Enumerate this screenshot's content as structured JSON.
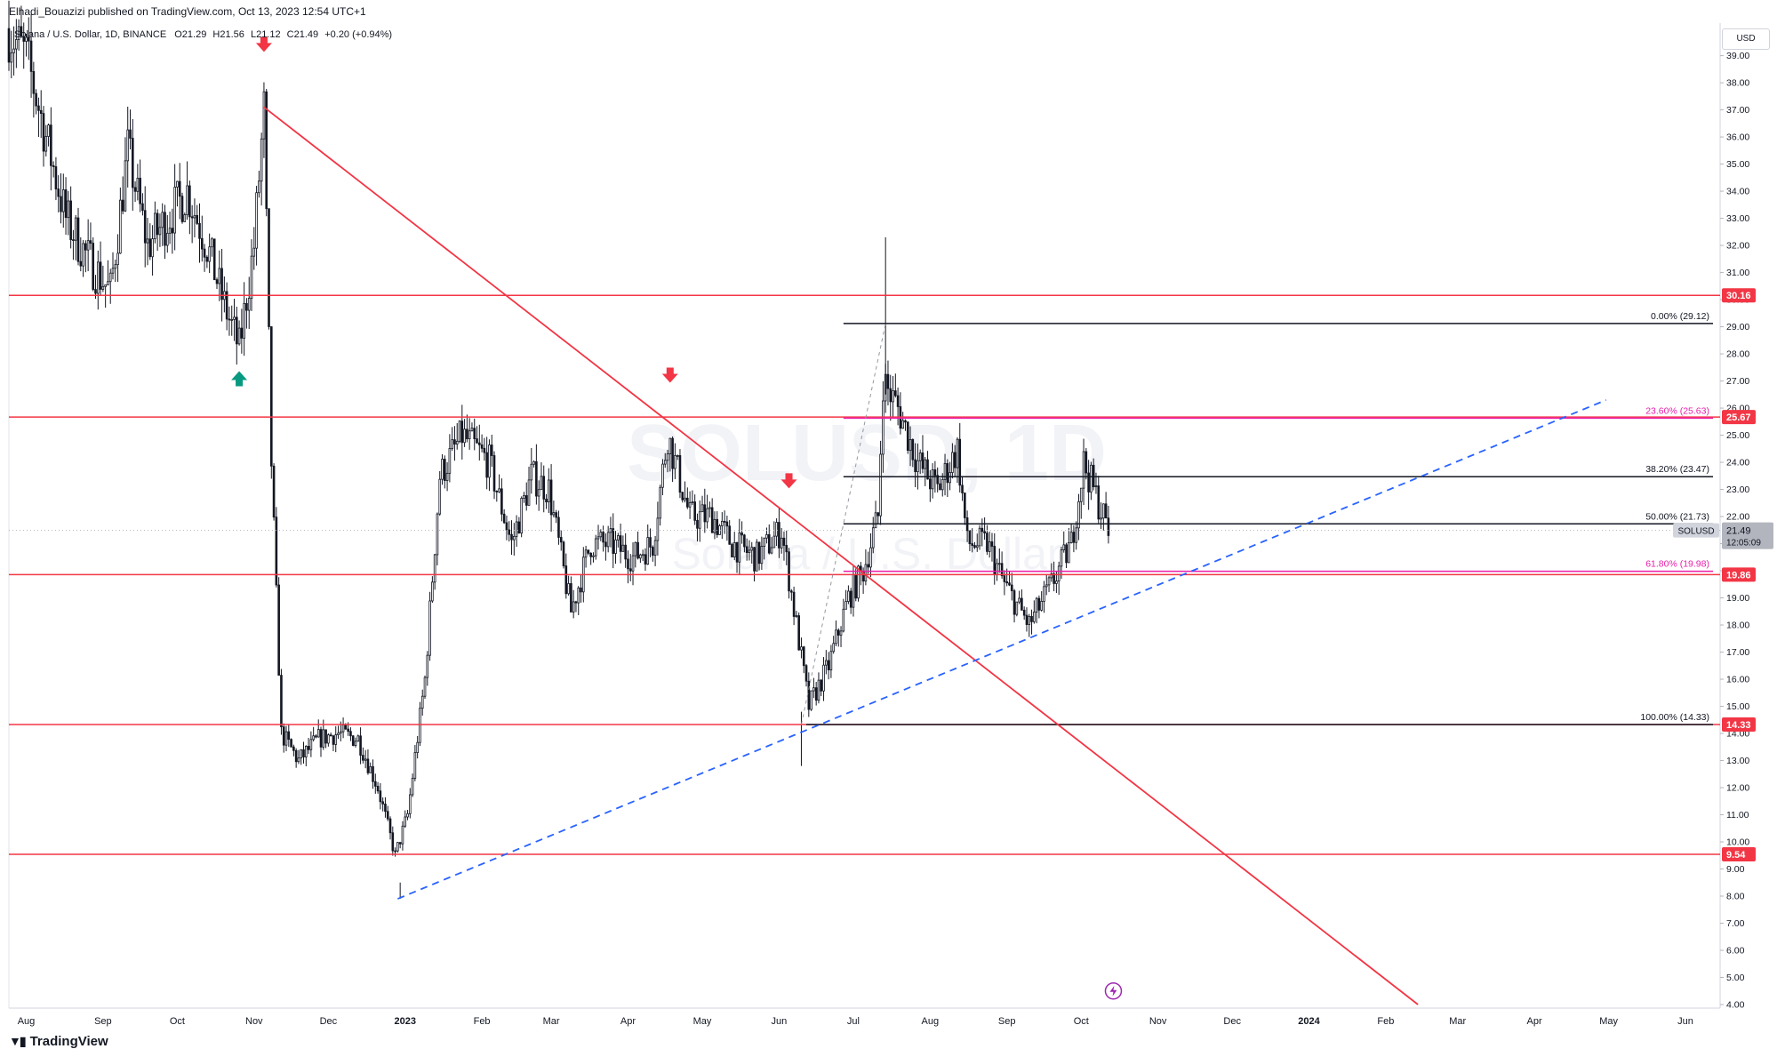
{
  "header": {
    "published": "Elhadi_Bouazizi published on TradingView.com, Oct 13, 2023 12:54 UTC+1",
    "symbol_line": "Solana / U.S. Dollar, 1D, BINANCE",
    "ohlc": {
      "o": "O21.29",
      "h": "H21.56",
      "l": "L21.12",
      "c": "C21.49",
      "chg": "+0.20 (+0.94%)"
    }
  },
  "watermark": {
    "main": "SOLUSD, 1D",
    "sub": "Solana / U.S. Dollar"
  },
  "footer": {
    "brand": "TradingView"
  },
  "colors": {
    "up": "#131722",
    "levels": "#f23645",
    "fib_black": "#131722",
    "fib_pink": "#e91eaa",
    "trend_blue": "#2962ff",
    "arrow_red": "#f23645",
    "arrow_green": "#089981"
  },
  "chart_data": {
    "type": "candlestick",
    "title": "SOLUSD",
    "currency": "USD",
    "ylim": [
      4,
      40.2
    ],
    "y_ticks": [
      "4.00",
      "5.00",
      "6.00",
      "7.00",
      "8.00",
      "9.00",
      "10.00",
      "11.00",
      "12.00",
      "13.00",
      "14.00",
      "15.00",
      "16.00",
      "17.00",
      "18.00",
      "19.00",
      "20.00",
      "21.00",
      "22.00",
      "23.00",
      "24.00",
      "25.00",
      "26.00",
      "27.00",
      "28.00",
      "29.00",
      "30.00",
      "31.00",
      "32.00",
      "33.00",
      "34.00",
      "35.00",
      "36.00",
      "37.00",
      "38.00",
      "39.00"
    ],
    "x_ticks": [
      "Aug",
      "Sep",
      "Oct",
      "Nov",
      "Dec",
      "2023",
      "Feb",
      "Mar",
      "Apr",
      "May",
      "Jun",
      "Jul",
      "Aug",
      "Sep",
      "Oct",
      "Nov",
      "Dec",
      "2024",
      "Feb",
      "Mar",
      "Apr",
      "May",
      "Jun"
    ],
    "x_range": [
      "2022-07-25",
      "2024-06-15"
    ],
    "price_path": [
      [
        "2022-07-25",
        40
      ],
      [
        "2022-08-02",
        39
      ],
      [
        "2022-08-10",
        36
      ],
      [
        "2022-08-18",
        33
      ],
      [
        "2022-08-27",
        31.5
      ],
      [
        "2022-09-05",
        30.3
      ],
      [
        "2022-09-12",
        35.5
      ],
      [
        "2022-09-20",
        32
      ],
      [
        "2022-09-28",
        33
      ],
      [
        "2022-10-06",
        34
      ],
      [
        "2022-10-14",
        32
      ],
      [
        "2022-10-21",
        29.8
      ],
      [
        "2022-10-27",
        28.2
      ],
      [
        "2022-11-02",
        32
      ],
      [
        "2022-11-06",
        37
      ],
      [
        "2022-11-09",
        24
      ],
      [
        "2022-11-13",
        14
      ],
      [
        "2022-11-20",
        13
      ],
      [
        "2022-11-28",
        13.8
      ],
      [
        "2022-12-06",
        14
      ],
      [
        "2022-12-14",
        13.8
      ],
      [
        "2022-12-22",
        12
      ],
      [
        "2022-12-29",
        9.5
      ],
      [
        "2023-01-03",
        11
      ],
      [
        "2023-01-10",
        16
      ],
      [
        "2023-01-16",
        23.5
      ],
      [
        "2023-01-25",
        25
      ],
      [
        "2023-02-05",
        24
      ],
      [
        "2023-02-14",
        21
      ],
      [
        "2023-02-22",
        23.5
      ],
      [
        "2023-03-01",
        23
      ],
      [
        "2023-03-10",
        18.5
      ],
      [
        "2023-03-18",
        21
      ],
      [
        "2023-03-26",
        21
      ],
      [
        "2023-04-04",
        20.5
      ],
      [
        "2023-04-12",
        21
      ],
      [
        "2023-04-18",
        25
      ],
      [
        "2023-04-27",
        22
      ],
      [
        "2023-05-06",
        22
      ],
      [
        "2023-05-14",
        21
      ],
      [
        "2023-05-24",
        20.5
      ],
      [
        "2023-06-03",
        21.5
      ],
      [
        "2023-06-09",
        18
      ],
      [
        "2023-06-14",
        15
      ],
      [
        "2023-06-22",
        16.5
      ],
      [
        "2023-06-30",
        19
      ],
      [
        "2023-07-06",
        20
      ],
      [
        "2023-07-12",
        22
      ],
      [
        "2023-07-14",
        27
      ],
      [
        "2023-07-20",
        26
      ],
      [
        "2023-07-28",
        24
      ],
      [
        "2023-08-05",
        23
      ],
      [
        "2023-08-13",
        24.5
      ],
      [
        "2023-08-17",
        21
      ],
      [
        "2023-08-25",
        21
      ],
      [
        "2023-09-01",
        19.5
      ],
      [
        "2023-09-11",
        18
      ],
      [
        "2023-09-20",
        19.5
      ],
      [
        "2023-09-28",
        21
      ],
      [
        "2023-10-03",
        24
      ],
      [
        "2023-10-09",
        22.5
      ],
      [
        "2023-10-13",
        21.49
      ]
    ],
    "price_labels": [
      {
        "value": 30.16,
        "text": "30.16",
        "type": "level"
      },
      {
        "value": 25.67,
        "text": "25.67",
        "type": "level"
      },
      {
        "value": 21.49,
        "text": "21.49",
        "type": "current",
        "sub": "12:05:09",
        "tag": "SOLUSD"
      },
      {
        "value": 19.86,
        "text": "19.86",
        "type": "level"
      },
      {
        "value": 14.33,
        "text": "14.33",
        "type": "level"
      },
      {
        "value": 9.54,
        "text": "9.54",
        "type": "level"
      }
    ],
    "horizontal_levels": [
      30.16,
      25.67,
      19.86,
      14.33,
      9.54
    ],
    "fibonacci": {
      "start": "2023-06-10",
      "end": "2023-07-14",
      "extend_to": "2024-06-15",
      "levels": [
        {
          "value": 29.12,
          "label": "0.00% (29.12)",
          "color": "#131722"
        },
        {
          "value": 25.63,
          "label": "23.60% (25.63)",
          "color": "#e91eaa"
        },
        {
          "value": 23.47,
          "label": "38.20% (23.47)",
          "color": "#131722"
        },
        {
          "value": 21.73,
          "label": "50.00% (21.73)",
          "color": "#131722"
        },
        {
          "value": 19.98,
          "label": "61.80% (19.98)",
          "color": "#e91eaa"
        },
        {
          "value": 14.33,
          "label": "100.00% (14.33)",
          "color": "#131722"
        }
      ]
    },
    "trendlines": [
      {
        "name": "downtrend",
        "style": "solid",
        "color": "#f23645",
        "from": [
          "2022-11-05",
          37.1
        ],
        "to": [
          "2024-02-14",
          4
        ]
      },
      {
        "name": "uptrend",
        "style": "dashed",
        "color": "#2962ff",
        "from": [
          "2022-12-29",
          7.9
        ],
        "to": [
          "2024-04-30",
          26.3
        ]
      },
      {
        "name": "fib-trend",
        "style": "dashed",
        "color": "#9598a1",
        "from": [
          "2023-06-10",
          14.33
        ],
        "to": [
          "2023-07-14",
          29.12
        ]
      }
    ],
    "markers": [
      {
        "type": "down-arrow",
        "date": "2022-11-05",
        "value": 39.4
      },
      {
        "type": "up-arrow",
        "date": "2022-10-26",
        "value": 27.1
      },
      {
        "type": "down-arrow",
        "date": "2023-04-18",
        "value": 27.2
      },
      {
        "type": "down-arrow",
        "date": "2023-06-05",
        "value": 23.3
      }
    ],
    "event_icon": {
      "date": "2023-10-14",
      "value": 4.5
    }
  }
}
